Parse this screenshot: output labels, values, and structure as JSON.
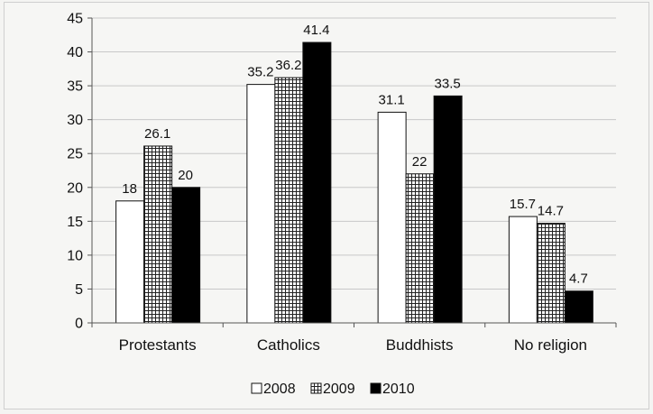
{
  "chart_data": {
    "type": "bar",
    "categories": [
      "Protestants",
      "Catholics",
      "Buddhists",
      "No religion"
    ],
    "series": [
      {
        "name": "2008",
        "values": [
          18,
          35.2,
          31.1,
          15.7
        ],
        "pattern": "white",
        "color": "#ffffff"
      },
      {
        "name": "2009",
        "values": [
          26.1,
          36.2,
          22,
          14.7
        ],
        "pattern": "grid",
        "color": "#ffffff"
      },
      {
        "name": "2010",
        "values": [
          20,
          41.4,
          33.5,
          4.7
        ],
        "pattern": "solid",
        "color": "#000000"
      }
    ],
    "ylim": [
      0,
      45
    ],
    "yticks": [
      0,
      5,
      10,
      15,
      20,
      25,
      30,
      35,
      40,
      45
    ],
    "grid": true,
    "legend_position": "bottom",
    "title": "",
    "xlabel": "",
    "ylabel": ""
  }
}
